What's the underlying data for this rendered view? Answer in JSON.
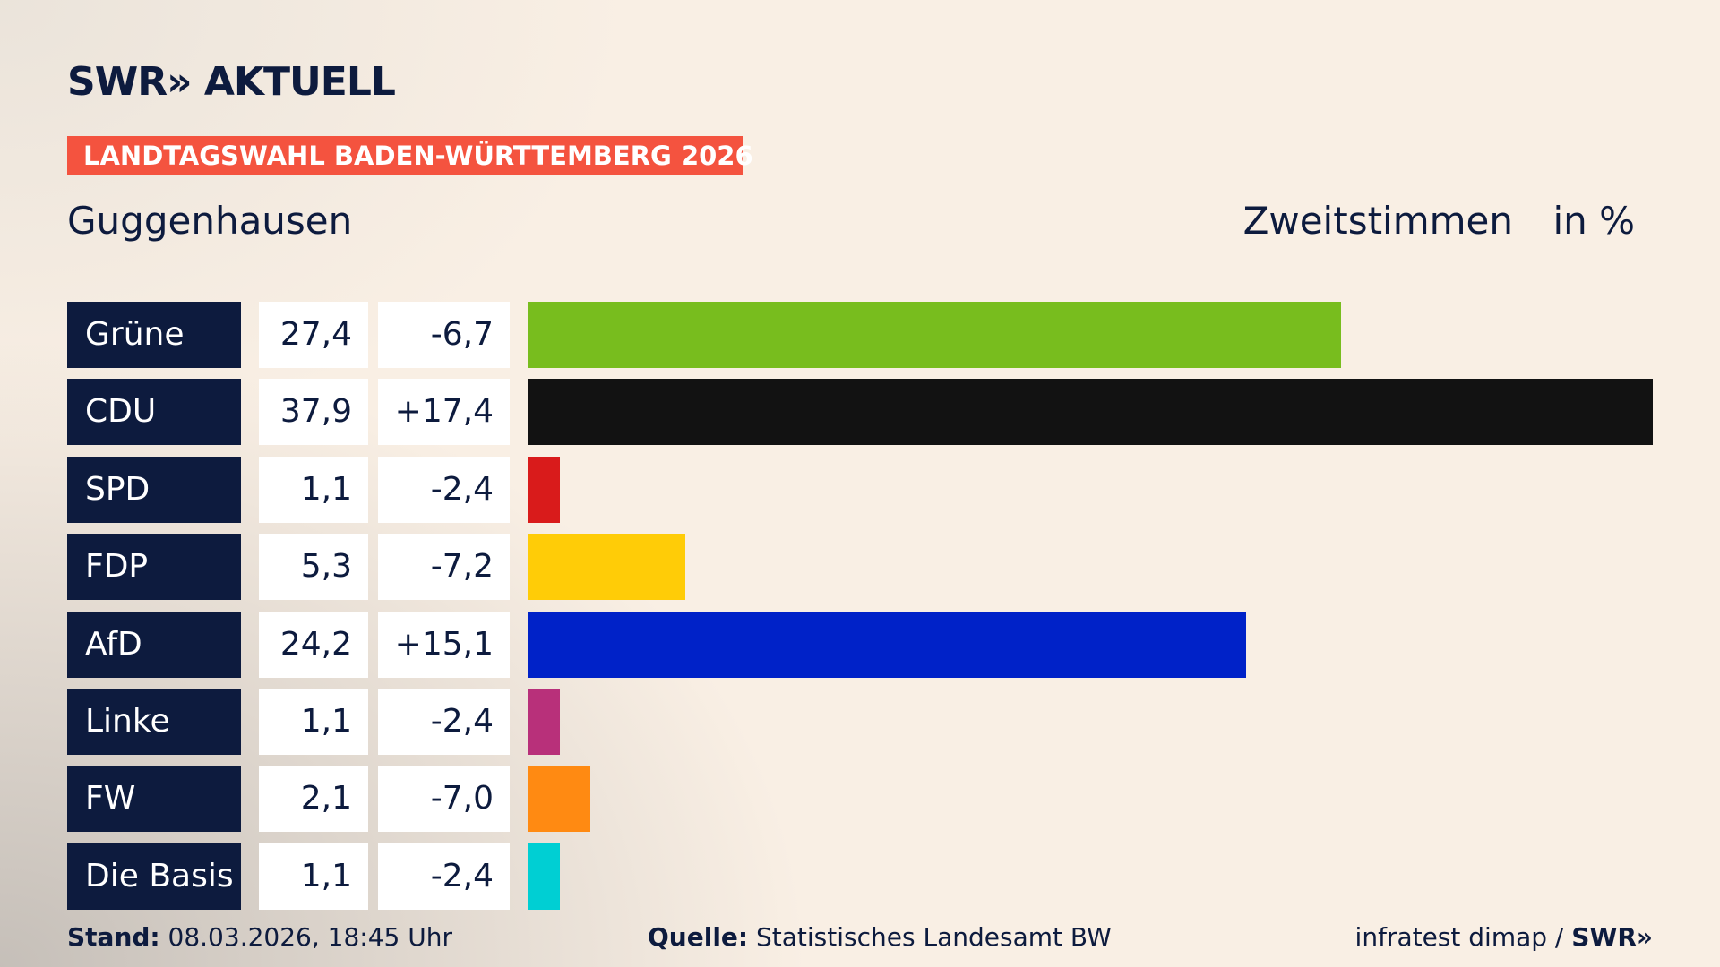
{
  "chart_data": {
    "type": "bar",
    "logo": "SWR",
    "logo_suffix": "AKTUELL",
    "banner": "LANDTAGSWAHL BADEN-WÜRTTEMBERG 2026",
    "title": "Guggenhausen",
    "column_label": "Zweitstimmen",
    "unit_label": "in %",
    "categories": [
      "Grüne",
      "CDU",
      "SPD",
      "FDP",
      "AfD",
      "Linke",
      "FW",
      "Die Basis"
    ],
    "values": [
      27.4,
      37.9,
      1.1,
      5.3,
      24.2,
      1.1,
      2.1,
      1.1
    ],
    "value_labels": [
      "27,4",
      "37,9",
      "1,1",
      "5,3",
      "24,2",
      "1,1",
      "2,1",
      "1,1"
    ],
    "changes": [
      "-6,7",
      "+17,4",
      "-2,4",
      "-7,2",
      "+15,1",
      "-2,4",
      "-7,0",
      "-2,4"
    ],
    "colors": [
      "#78bd1e",
      "#121212",
      "#d91b1b",
      "#ffcc07",
      "#0022c8",
      "#b8307a",
      "#ff8a12",
      "#00cfd3"
    ],
    "xlim": [
      0,
      37.9
    ],
    "footer": {
      "stand_label": "Stand:",
      "stand": "08.03.2026, 18:45 Uhr",
      "source_label": "Quelle:",
      "source": "Statistisches Landesamt BW",
      "credit": "infratest dimap /",
      "credit_logo": "SWR"
    }
  }
}
